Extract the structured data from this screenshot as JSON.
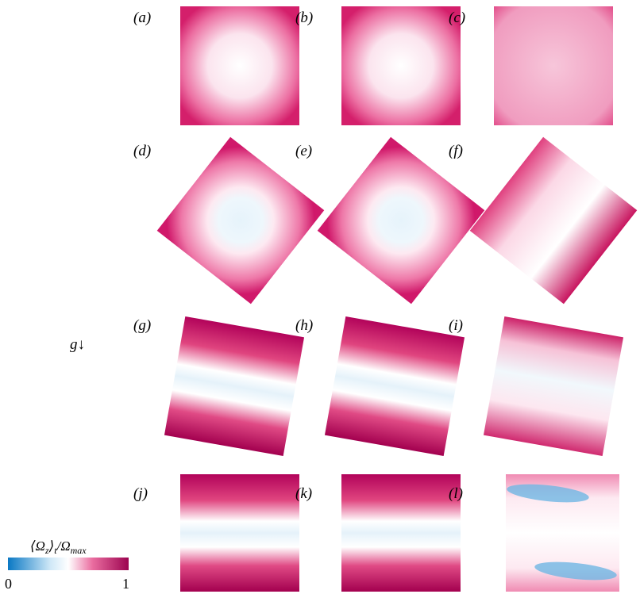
{
  "panels": [
    {
      "label": "(a)"
    },
    {
      "label": "(b)"
    },
    {
      "label": "(c)"
    },
    {
      "label": "(d)"
    },
    {
      "label": "(e)"
    },
    {
      "label": "(f)"
    },
    {
      "label": "(g)"
    },
    {
      "label": "(h)"
    },
    {
      "label": "(i)"
    },
    {
      "label": "(j)"
    },
    {
      "label": "(k)"
    },
    {
      "label": "(l)"
    }
  ],
  "gravity": "g↓",
  "colorbar": {
    "label_parts": [
      "⟨Ω",
      "z",
      "⟩",
      "t",
      "/Ω",
      "max"
    ],
    "ticks": [
      0,
      1
    ]
  }
}
